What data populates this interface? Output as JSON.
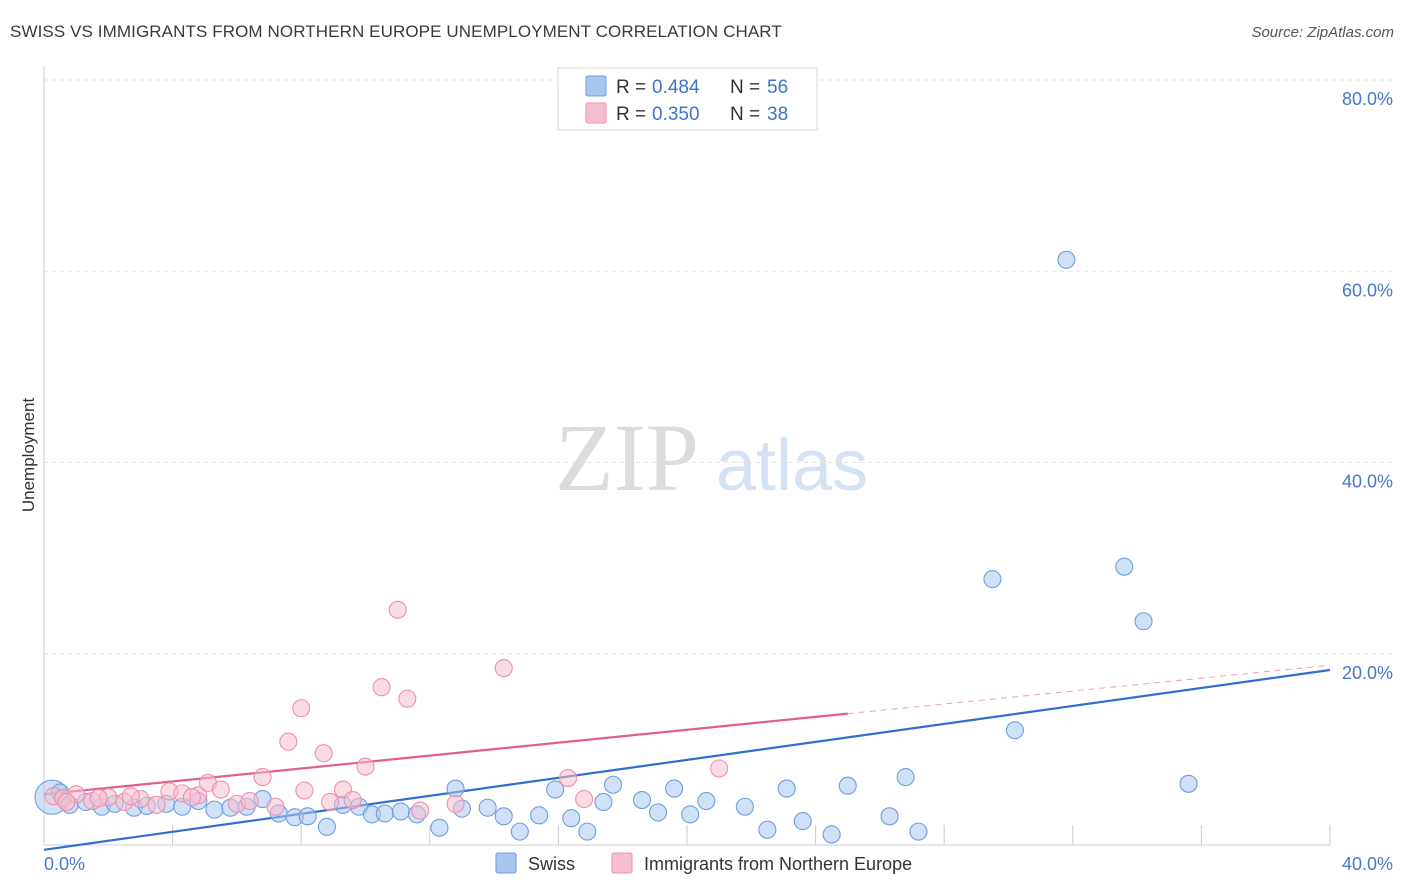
{
  "title": "SWISS VS IMMIGRANTS FROM NORTHERN EUROPE UNEMPLOYMENT CORRELATION CHART",
  "source": "Source: ZipAtlas.com",
  "watermark": {
    "zip": "ZIP",
    "atlas": "atlas"
  },
  "colors": {
    "swiss_fill": "#a9c6ee",
    "swiss_stroke": "#6f9ee0",
    "swiss_line": "#2f6fd0",
    "imm_fill": "#f6bfd0",
    "imm_stroke": "#ee8fae",
    "imm_line": "#e0608a",
    "grid": "#e3e3e3",
    "axis": "#cccccc",
    "tick_text": "#4a78c8"
  },
  "chart_data": {
    "type": "scatter",
    "title": "SWISS VS IMMIGRANTS FROM NORTHERN EUROPE UNEMPLOYMENT CORRELATION CHART",
    "xlabel": "",
    "ylabel": "Unemployment",
    "xlim": [
      0,
      40
    ],
    "ylim": [
      0,
      80
    ],
    "x_tick_labels": [
      "0.0%",
      "40.0%"
    ],
    "y_ticks": [
      20,
      40,
      60,
      80
    ],
    "y_tick_labels": [
      "20.0%",
      "40.0%",
      "60.0%",
      "80.0%"
    ],
    "grid": true,
    "legend_position": "top-center",
    "legend": [
      {
        "r_label": "R = ",
        "r_value": "0.484",
        "n_label": "N = ",
        "n_value": "56"
      },
      {
        "r_label": "R = ",
        "r_value": "0.350",
        "n_label": "N = ",
        "n_value": "38"
      }
    ],
    "series": [
      {
        "name": "Swiss",
        "trend": {
          "x0": 0,
          "y0": -0.5,
          "x1": 40,
          "y1": 18.3,
          "dashed_from": null
        },
        "points": [
          {
            "x": 0.25,
            "y": 5.0,
            "s": "big"
          },
          {
            "x": 0.5,
            "y": 5.5
          },
          {
            "x": 0.8,
            "y": 4.2
          },
          {
            "x": 1.3,
            "y": 4.5
          },
          {
            "x": 1.8,
            "y": 4.0
          },
          {
            "x": 2.2,
            "y": 4.3
          },
          {
            "x": 2.8,
            "y": 3.9
          },
          {
            "x": 3.2,
            "y": 4.1
          },
          {
            "x": 3.8,
            "y": 4.3
          },
          {
            "x": 4.3,
            "y": 4.0
          },
          {
            "x": 4.8,
            "y": 4.6
          },
          {
            "x": 5.3,
            "y": 3.7
          },
          {
            "x": 5.8,
            "y": 3.9
          },
          {
            "x": 6.3,
            "y": 4.0
          },
          {
            "x": 6.8,
            "y": 4.8
          },
          {
            "x": 7.3,
            "y": 3.3
          },
          {
            "x": 7.8,
            "y": 2.9
          },
          {
            "x": 8.2,
            "y": 3.0
          },
          {
            "x": 8.8,
            "y": 1.9
          },
          {
            "x": 9.3,
            "y": 4.2
          },
          {
            "x": 9.8,
            "y": 4.0
          },
          {
            "x": 10.2,
            "y": 3.2
          },
          {
            "x": 10.6,
            "y": 3.3
          },
          {
            "x": 11.1,
            "y": 3.5
          },
          {
            "x": 11.6,
            "y": 3.2
          },
          {
            "x": 12.3,
            "y": 1.8
          },
          {
            "x": 12.8,
            "y": 5.9
          },
          {
            "x": 13.0,
            "y": 3.8
          },
          {
            "x": 13.8,
            "y": 3.9
          },
          {
            "x": 14.3,
            "y": 3.0
          },
          {
            "x": 14.8,
            "y": 1.4
          },
          {
            "x": 15.4,
            "y": 3.1
          },
          {
            "x": 15.9,
            "y": 5.8
          },
          {
            "x": 16.4,
            "y": 2.8
          },
          {
            "x": 16.9,
            "y": 1.4
          },
          {
            "x": 17.4,
            "y": 4.5
          },
          {
            "x": 17.7,
            "y": 6.3
          },
          {
            "x": 18.6,
            "y": 4.7
          },
          {
            "x": 19.1,
            "y": 3.4
          },
          {
            "x": 19.6,
            "y": 5.9
          },
          {
            "x": 20.1,
            "y": 3.2
          },
          {
            "x": 20.6,
            "y": 4.6
          },
          {
            "x": 21.8,
            "y": 4.0
          },
          {
            "x": 22.5,
            "y": 1.6
          },
          {
            "x": 23.1,
            "y": 5.9
          },
          {
            "x": 23.6,
            "y": 2.5
          },
          {
            "x": 24.5,
            "y": 1.1
          },
          {
            "x": 25.0,
            "y": 6.2
          },
          {
            "x": 26.3,
            "y": 3.0
          },
          {
            "x": 26.8,
            "y": 7.1
          },
          {
            "x": 27.2,
            "y": 1.4
          },
          {
            "x": 29.5,
            "y": 27.8
          },
          {
            "x": 30.2,
            "y": 12.0
          },
          {
            "x": 31.8,
            "y": 61.2
          },
          {
            "x": 33.6,
            "y": 29.1
          },
          {
            "x": 34.2,
            "y": 23.4
          },
          {
            "x": 35.6,
            "y": 6.4
          }
        ]
      },
      {
        "name": "Immigrants from Northern Europe",
        "trend": {
          "x0": 0,
          "y0": 5.3,
          "x1": 40,
          "y1": 18.8,
          "dashed_from": 25
        },
        "points": [
          {
            "x": 0.3,
            "y": 5.1
          },
          {
            "x": 0.6,
            "y": 4.9
          },
          {
            "x": 1.0,
            "y": 5.3
          },
          {
            "x": 1.5,
            "y": 4.6
          },
          {
            "x": 2.0,
            "y": 5.0
          },
          {
            "x": 2.5,
            "y": 4.5
          },
          {
            "x": 3.0,
            "y": 4.8
          },
          {
            "x": 3.5,
            "y": 4.2
          },
          {
            "x": 3.9,
            "y": 5.6
          },
          {
            "x": 4.3,
            "y": 5.4
          },
          {
            "x": 4.8,
            "y": 5.2
          },
          {
            "x": 5.1,
            "y": 6.5
          },
          {
            "x": 5.5,
            "y": 5.8
          },
          {
            "x": 6.0,
            "y": 4.3
          },
          {
            "x": 6.4,
            "y": 4.6
          },
          {
            "x": 6.8,
            "y": 7.1
          },
          {
            "x": 7.2,
            "y": 4.0
          },
          {
            "x": 7.6,
            "y": 10.8
          },
          {
            "x": 8.0,
            "y": 14.3
          },
          {
            "x": 8.1,
            "y": 5.7
          },
          {
            "x": 8.7,
            "y": 9.6
          },
          {
            "x": 8.9,
            "y": 4.5
          },
          {
            "x": 9.3,
            "y": 5.8
          },
          {
            "x": 9.6,
            "y": 4.7
          },
          {
            "x": 10.0,
            "y": 8.2
          },
          {
            "x": 10.5,
            "y": 16.5
          },
          {
            "x": 11.0,
            "y": 24.6
          },
          {
            "x": 11.3,
            "y": 15.3
          },
          {
            "x": 11.7,
            "y": 3.6
          },
          {
            "x": 12.8,
            "y": 4.3
          },
          {
            "x": 14.3,
            "y": 18.5
          },
          {
            "x": 16.3,
            "y": 7.0
          },
          {
            "x": 16.8,
            "y": 4.8
          },
          {
            "x": 21.0,
            "y": 8.0
          },
          {
            "x": 0.7,
            "y": 4.5
          },
          {
            "x": 1.7,
            "y": 4.9
          },
          {
            "x": 2.7,
            "y": 5.1
          },
          {
            "x": 4.6,
            "y": 5.0
          }
        ]
      }
    ]
  },
  "bottom_legend": [
    "Swiss",
    "Immigrants from Northern Europe"
  ]
}
